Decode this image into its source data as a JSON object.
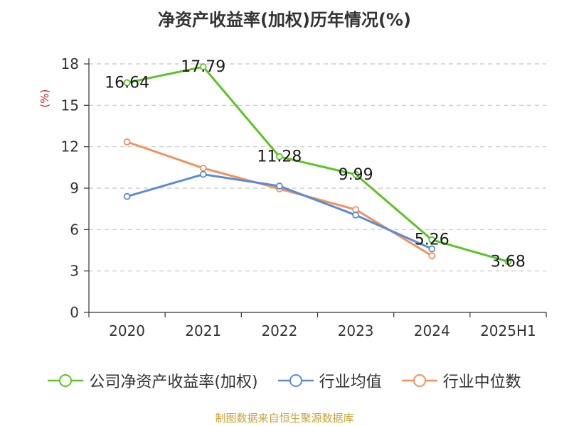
{
  "chart_data": {
    "type": "line",
    "title": "净资产收益率(加权)历年情况(%)",
    "ylabel": "(%)",
    "categories": [
      "2020",
      "2021",
      "2022",
      "2023",
      "2024",
      "2025H1"
    ],
    "y_ticks": [
      0,
      3,
      6,
      9,
      12,
      15,
      18
    ],
    "ylim": [
      0,
      18
    ],
    "grid": true,
    "legend_position": "bottom",
    "series": [
      {
        "name": "公司净资产收益率(加权)",
        "color": "#5bc424",
        "values": [
          16.64,
          17.79,
          11.28,
          9.99,
          5.26,
          3.68
        ],
        "labels": [
          "16.64",
          "17.79",
          "11.28",
          "9.99",
          "5.26",
          "3.68"
        ]
      },
      {
        "name": "行业均值",
        "color": "#5b8bd9",
        "values": [
          8.4,
          10.0,
          9.15,
          7.05,
          4.6,
          null
        ]
      },
      {
        "name": "行业中位数",
        "color": "#f3915b",
        "values": [
          12.35,
          10.45,
          8.95,
          7.45,
          4.1,
          null
        ]
      }
    ]
  },
  "source": "制图数据来自恒生聚源数据库"
}
